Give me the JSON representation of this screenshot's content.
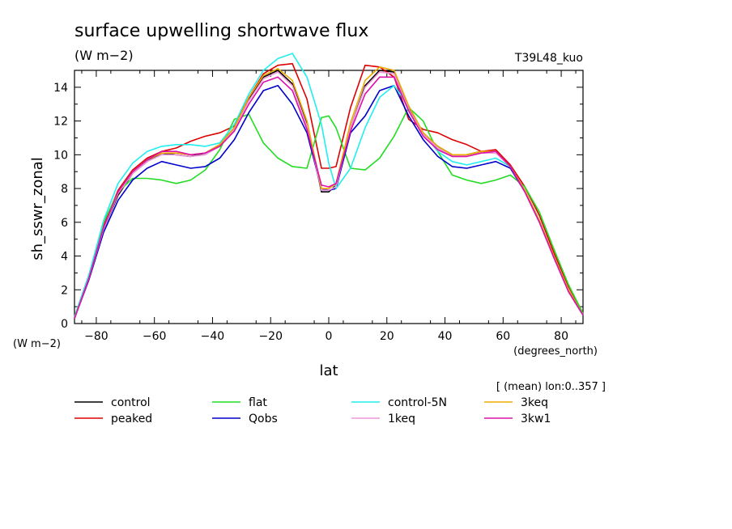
{
  "chart_data": {
    "type": "line",
    "title": "surface upwelling shortwave flux",
    "units": "(W m−2)",
    "run_label": "T39L48_kuo",
    "xlabel": "lat",
    "x_units": "(degrees_north)",
    "ylabel": "sh_sswr_zonal",
    "y_units": "(W m−2)",
    "footnote": "[ (mean) lon:0..357 ]",
    "xlim": [
      -87.5,
      87.5
    ],
    "ylim": [
      0,
      15
    ],
    "xticks": [
      -80,
      -60,
      -40,
      -20,
      0,
      20,
      40,
      60,
      80
    ],
    "yticks": [
      0,
      2,
      4,
      6,
      8,
      10,
      12,
      14
    ],
    "grid": false,
    "legend_position": "below",
    "x": [
      -87.5,
      -82.5,
      -77.5,
      -72.5,
      -67.5,
      -62.5,
      -57.5,
      -52.5,
      -47.5,
      -42.5,
      -37.5,
      -32.5,
      -27.5,
      -22.5,
      -17.5,
      -12.5,
      -7.5,
      -2.5,
      0,
      2.5,
      7.5,
      12.5,
      17.5,
      22.5,
      27.5,
      32.5,
      37.5,
      42.5,
      47.5,
      52.5,
      57.5,
      62.5,
      67.5,
      72.5,
      77.5,
      82.5,
      87.5
    ],
    "series": [
      {
        "name": "control",
        "color": "#000000",
        "values": [
          0.3,
          2.7,
          5.6,
          7.6,
          8.9,
          9.6,
          10.1,
          10.0,
          9.9,
          10.1,
          10.6,
          11.6,
          13.3,
          14.6,
          15.0,
          14.2,
          11.8,
          7.8,
          7.8,
          8.2,
          11.6,
          14.1,
          15.0,
          14.9,
          12.8,
          11.3,
          10.5,
          10.0,
          10.0,
          10.2,
          10.2,
          9.3,
          7.8,
          6.0,
          3.9,
          1.9,
          0.5
        ]
      },
      {
        "name": "peaked",
        "color": "#dd0000",
        "values": [
          0.3,
          2.8,
          5.8,
          7.9,
          9.1,
          9.8,
          10.2,
          10.4,
          10.8,
          11.1,
          11.3,
          11.7,
          13.4,
          14.8,
          15.3,
          15.4,
          13.3,
          9.2,
          9.2,
          9.3,
          12.8,
          15.3,
          15.2,
          14.6,
          12.1,
          11.5,
          11.3,
          10.9,
          10.6,
          10.2,
          10.3,
          9.4,
          8.1,
          6.4,
          4.2,
          2.2,
          0.6
        ]
      },
      {
        "name": "flat",
        "color": "#22dd22",
        "values": [
          0.4,
          2.9,
          6.0,
          7.8,
          8.6,
          8.6,
          8.5,
          8.3,
          8.5,
          9.1,
          10.3,
          12.1,
          12.4,
          10.7,
          9.8,
          9.3,
          9.2,
          12.2,
          12.3,
          11.6,
          9.2,
          9.1,
          9.8,
          11.1,
          12.8,
          12.0,
          10.2,
          8.8,
          8.5,
          8.3,
          8.5,
          8.8,
          8.1,
          6.6,
          4.4,
          2.3,
          0.6
        ]
      },
      {
        "name": "Qobs",
        "color": "#0000cc",
        "values": [
          0.3,
          2.6,
          5.4,
          7.3,
          8.5,
          9.2,
          9.6,
          9.4,
          9.2,
          9.3,
          9.8,
          10.9,
          12.5,
          13.8,
          14.1,
          13.0,
          11.3,
          8.0,
          7.9,
          8.0,
          11.3,
          12.3,
          13.8,
          14.1,
          12.3,
          10.9,
          9.9,
          9.3,
          9.2,
          9.4,
          9.6,
          9.2,
          7.8,
          6.0,
          3.9,
          1.9,
          0.5
        ]
      },
      {
        "name": "control-5N",
        "color": "#22eeee",
        "values": [
          0.4,
          2.9,
          6.1,
          8.3,
          9.5,
          10.2,
          10.5,
          10.6,
          10.6,
          10.5,
          10.7,
          11.8,
          13.6,
          15.0,
          15.7,
          16.0,
          14.6,
          11.8,
          9.5,
          8.0,
          9.2,
          11.6,
          13.4,
          14.1,
          12.9,
          11.3,
          10.2,
          9.6,
          9.4,
          9.6,
          9.8,
          9.3,
          7.9,
          6.1,
          4.0,
          2.0,
          0.5
        ]
      },
      {
        "name": "1keq",
        "color": "#ee99dd",
        "values": [
          0.3,
          2.7,
          5.6,
          7.7,
          8.9,
          9.6,
          10.0,
          10.0,
          9.9,
          10.0,
          10.5,
          11.5,
          13.2,
          14.5,
          14.9,
          14.1,
          11.7,
          7.9,
          7.9,
          8.1,
          11.6,
          14.0,
          14.9,
          14.8,
          12.7,
          11.2,
          10.4,
          9.9,
          9.9,
          10.1,
          10.1,
          9.3,
          7.8,
          6.0,
          3.9,
          1.9,
          0.5
        ]
      },
      {
        "name": "3keq",
        "color": "#eeaa00",
        "values": [
          0.3,
          2.7,
          5.7,
          7.8,
          9.0,
          9.7,
          10.1,
          10.1,
          10.0,
          10.1,
          10.6,
          11.6,
          13.4,
          14.7,
          15.1,
          14.4,
          12.0,
          8.0,
          8.0,
          8.3,
          11.9,
          14.4,
          15.2,
          15.0,
          12.9,
          11.3,
          10.5,
          10.0,
          10.0,
          10.2,
          10.2,
          9.3,
          7.9,
          6.1,
          4.0,
          2.0,
          0.5
        ]
      },
      {
        "name": "3kw1",
        "color": "#dd11aa",
        "values": [
          0.3,
          2.7,
          5.7,
          7.8,
          9.0,
          9.7,
          10.2,
          10.2,
          10.0,
          10.1,
          10.5,
          11.4,
          13.0,
          14.3,
          14.6,
          13.8,
          11.5,
          8.2,
          8.1,
          8.3,
          11.4,
          13.6,
          14.6,
          14.6,
          12.6,
          11.1,
          10.3,
          9.9,
          9.9,
          10.1,
          10.2,
          9.3,
          7.8,
          6.0,
          3.9,
          1.9,
          0.5
        ]
      }
    ]
  }
}
